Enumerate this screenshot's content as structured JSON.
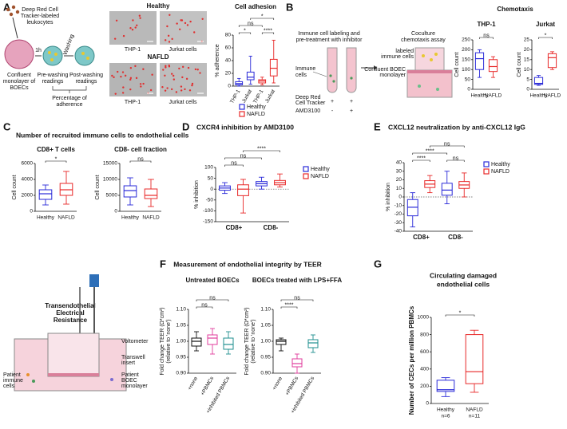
{
  "panel_labels": [
    "A",
    "B",
    "C",
    "D",
    "E",
    "F",
    "G"
  ],
  "panel_titles": {
    "chemotaxis": "Chemotaxis",
    "c": "Number of recruited immune cells to endothelial cells",
    "f": "Measurement of endothelial integrity by TEER"
  },
  "schematic_a": {
    "tracker": [
      "Deep Red Cell",
      "Tracker-labeled",
      "leukocytes"
    ],
    "time": "1h",
    "washing": "Washing",
    "monolayer": [
      "Confluent",
      "monolayer of",
      "BOECs"
    ],
    "pre": [
      "Pre-washing",
      "readings"
    ],
    "post": [
      "Post-washing",
      "readings"
    ],
    "adherence": [
      "Percentage of",
      "adherence"
    ]
  },
  "micrographs": {
    "rows": [
      "Healthy",
      "NAFLD"
    ],
    "columns": [
      "THP-1",
      "Jurkat cells"
    ]
  },
  "schematic_b": {
    "step1": [
      "Immune cell labeling and",
      "pre-treatment with inhibitor"
    ],
    "step2": [
      "Coculture",
      "chemotaxis assay"
    ],
    "immune": [
      "Immune",
      "cells"
    ],
    "labeled": [
      "labeled",
      "immune cells"
    ],
    "monolayer": [
      "Confluent BOEC",
      "monolayer"
    ],
    "tracker": [
      "Deep Red",
      "Cell Tracker"
    ],
    "inhibitor": "AMD3100",
    "signs": [
      "+",
      "+",
      "-",
      "+"
    ]
  },
  "schematic_f": {
    "title": [
      "Transendothelial",
      "Electrical",
      "Resistance"
    ],
    "voltometer": "Voltometer",
    "insert": [
      "Transwell",
      "insert"
    ],
    "cells": [
      "Patient",
      "immune",
      "cells"
    ],
    "monolayer": [
      "Patient",
      "BOEC",
      "monolayer"
    ]
  },
  "chart_data": [
    {
      "type": "box",
      "title": "Cell adhesion",
      "ylabel": "% adherence",
      "categories": [
        "THP-1",
        "Jurkat"
      ],
      "series": [
        {
          "name": "Healthy",
          "color": "#2a2ad8",
          "values": [
            {
              "min": 0,
              "q1": 2,
              "median": 4,
              "q3": 7,
              "max": 12
            },
            {
              "min": 3,
              "q1": 10,
              "median": 14,
              "q3": 22,
              "max": 47
            }
          ]
        },
        {
          "name": "NAFLD",
          "color": "#e82828",
          "values": [
            {
              "min": 2,
              "q1": 5,
              "median": 8,
              "q3": 10,
              "max": 14
            },
            {
              "min": 5,
              "q1": 16,
              "median": 28,
              "q3": 42,
              "max": 72
            }
          ]
        }
      ],
      "ylim": [
        0,
        80
      ],
      "yticks": [
        0,
        20,
        40,
        60,
        80
      ],
      "legend": "bottom",
      "annotations": [
        "*",
        "ns",
        "*",
        "****"
      ]
    },
    {
      "type": "box",
      "title": "THP-1",
      "ylabel": "Cell count",
      "categories": [
        "Healthy",
        "NAFLD"
      ],
      "colors": [
        "#2a2ad8",
        "#e82828"
      ],
      "values": [
        {
          "min": 60,
          "q1": 100,
          "median": 155,
          "q3": 185,
          "max": 200
        },
        {
          "min": 60,
          "q1": 90,
          "median": 115,
          "q3": 150,
          "max": 165
        }
      ],
      "ylim": [
        0,
        250
      ],
      "yticks": [
        0,
        50,
        100,
        150,
        200,
        250
      ],
      "annotations": [
        "ns"
      ]
    },
    {
      "type": "box",
      "title": "Jurkat",
      "ylabel": "Cell count",
      "categories": [
        "Healthy",
        "NAFLD"
      ],
      "colors": [
        "#2a2ad8",
        "#e82828"
      ],
      "values": [
        {
          "min": 2,
          "q1": 2.5,
          "median": 3,
          "q3": 6,
          "max": 7
        },
        {
          "min": 10,
          "q1": 11,
          "median": 16,
          "q3": 18,
          "max": 19
        }
      ],
      "ylim": [
        0,
        25
      ],
      "yticks": [
        0,
        5,
        10,
        15,
        20,
        25
      ],
      "annotations": [
        "*"
      ]
    },
    {
      "type": "box",
      "title": "CD8+ T cells",
      "ylabel": "Cell count",
      "categories": [
        "Healthy",
        "NAFLD"
      ],
      "colors": [
        "#2a2ad8",
        "#e82828"
      ],
      "values": [
        {
          "min": 800,
          "q1": 1500,
          "median": 2200,
          "q3": 2700,
          "max": 3300
        },
        {
          "min": 900,
          "q1": 2000,
          "median": 2700,
          "q3": 3500,
          "max": 5000
        }
      ],
      "ylim": [
        0,
        6000
      ],
      "yticks": [
        0,
        2000,
        4000,
        6000
      ],
      "annotations": [
        "*"
      ]
    },
    {
      "type": "box",
      "title": "CD8- cell fraction",
      "ylabel": "Cell count",
      "categories": [
        "Healthy",
        "NAFLD"
      ],
      "colors": [
        "#2a2ad8",
        "#e82828"
      ],
      "values": [
        {
          "min": 2000,
          "q1": 4500,
          "median": 6500,
          "q3": 8000,
          "max": 10500
        },
        {
          "min": 1500,
          "q1": 4000,
          "median": 5000,
          "q3": 7000,
          "max": 10000
        }
      ],
      "ylim": [
        0,
        15000
      ],
      "yticks": [
        0,
        5000,
        10000,
        15000
      ],
      "annotations": [
        "ns"
      ]
    },
    {
      "type": "box",
      "title": "CXCR4 inhibition by AMD3100",
      "ylabel": "% inhibition",
      "categories": [
        "CD8+",
        "CD8-"
      ],
      "series": [
        {
          "name": "Healthy",
          "color": "#2a2ad8",
          "values": [
            {
              "min": -20,
              "q1": -5,
              "median": 5,
              "q3": 15,
              "max": 30
            },
            {
              "min": 0,
              "q1": 15,
              "median": 25,
              "q3": 35,
              "max": 55
            }
          ]
        },
        {
          "name": "NAFLD",
          "color": "#e82828",
          "values": [
            {
              "min": -110,
              "q1": -30,
              "median": 0,
              "q3": 20,
              "max": 45
            },
            {
              "min": 10,
              "q1": 20,
              "median": 30,
              "q3": 40,
              "max": 70
            }
          ]
        }
      ],
      "ylim": [
        -150,
        100
      ],
      "yticks": [
        -150,
        -100,
        -50,
        0,
        50,
        100
      ],
      "zero_line": true,
      "legend": "right",
      "annotations": [
        "****",
        "ns",
        "ns"
      ]
    },
    {
      "type": "box",
      "title": "CXCL12 neutralization by anti-CXCL12 IgG",
      "ylabel": "% inhibition",
      "categories": [
        "CD8+",
        "CD8-"
      ],
      "series": [
        {
          "name": "Healthy",
          "color": "#2a2ad8",
          "values": [
            {
              "min": -35,
              "q1": -22,
              "median": -12,
              "q3": -3,
              "max": 5
            },
            {
              "min": -8,
              "q1": 2,
              "median": 8,
              "q3": 16,
              "max": 30
            }
          ]
        },
        {
          "name": "NAFLD",
          "color": "#e82828",
          "values": [
            {
              "min": 5,
              "q1": 11,
              "median": 15,
              "q3": 19,
              "max": 25
            },
            {
              "min": 0,
              "q1": 10,
              "median": 14,
              "q3": 18,
              "max": 28
            }
          ]
        }
      ],
      "ylim": [
        -40,
        40
      ],
      "yticks": [
        -40,
        -30,
        -20,
        -10,
        0,
        10,
        20,
        30,
        40
      ],
      "zero_line": true,
      "legend": "right",
      "annotations": [
        "ns",
        "****",
        "****",
        "ns"
      ]
    },
    {
      "type": "box",
      "title": "Untreated BOECs",
      "ylabel": [
        "Fold change TEER (Ω*cm²)",
        "(relative to 'none')"
      ],
      "categories": [
        "+none",
        "+PBMCs",
        "+inhibited PBMCs"
      ],
      "colors": [
        "#111111",
        "#e03c9c",
        "#1f8f8f"
      ],
      "values": [
        {
          "min": 0.97,
          "q1": 0.985,
          "median": 1.0,
          "q3": 1.01,
          "max": 1.03
        },
        {
          "min": 0.96,
          "q1": 0.99,
          "median": 1.01,
          "q3": 1.02,
          "max": 1.04
        },
        {
          "min": 0.96,
          "q1": 0.975,
          "median": 0.99,
          "q3": 1.01,
          "max": 1.03
        }
      ],
      "ylim": [
        0.9,
        1.1
      ],
      "yticks": [
        {
          "value": 0.9,
          "label": "0.90"
        },
        {
          "value": 0.95,
          "label": "0.95"
        },
        {
          "value": 1.0,
          "label": "1.00"
        },
        {
          "value": 1.05,
          "label": "1.05"
        },
        {
          "value": 1.1,
          "label": "1.10"
        }
      ],
      "annotations": [
        "ns",
        "ns"
      ]
    },
    {
      "type": "box",
      "title": "BOECs treated with LPS+FFA",
      "ylabel": [
        "Fold change TEER (Ω*cm²)",
        "(relative to 'none')"
      ],
      "categories": [
        "+none",
        "+PBMCs",
        "+inhibited PBMCs"
      ],
      "colors": [
        "#111111",
        "#e03c9c",
        "#1f8f8f"
      ],
      "values": [
        {
          "min": 0.97,
          "q1": 0.99,
          "median": 1.0,
          "q3": 1.005,
          "max": 1.01
        },
        {
          "min": 0.9,
          "q1": 0.92,
          "median": 0.93,
          "q3": 0.945,
          "max": 0.96
        },
        {
          "min": 0.965,
          "q1": 0.98,
          "median": 0.995,
          "q3": 1.005,
          "max": 1.02
        }
      ],
      "ylim": [
        0.9,
        1.1
      ],
      "yticks": [
        {
          "value": 0.9,
          "label": "0.90"
        },
        {
          "value": 0.95,
          "label": "0.95"
        },
        {
          "value": 1.0,
          "label": "1.00"
        },
        {
          "value": 1.05,
          "label": "1.05"
        },
        {
          "value": 1.1,
          "label": "1.10"
        }
      ],
      "annotations": [
        "ns",
        "****"
      ]
    },
    {
      "type": "box",
      "title": [
        "Circulating damaged",
        "endothelial cells"
      ],
      "ylabel": "Number of CECs per million PBMCs",
      "categories": [
        "Healthy",
        "NAFLD"
      ],
      "sublabels": [
        "n=6",
        "n=11"
      ],
      "colors": [
        "#2a2ad8",
        "#e82828"
      ],
      "values": [
        {
          "min": 80,
          "q1": 140,
          "median": 160,
          "q3": 270,
          "max": 300
        },
        {
          "min": 130,
          "q1": 230,
          "median": 370,
          "q3": 800,
          "max": 850
        }
      ],
      "ylim": [
        0,
        1000
      ],
      "yticks": [
        0,
        200,
        400,
        600,
        800,
        1000
      ],
      "annotations": [
        "*"
      ]
    }
  ]
}
